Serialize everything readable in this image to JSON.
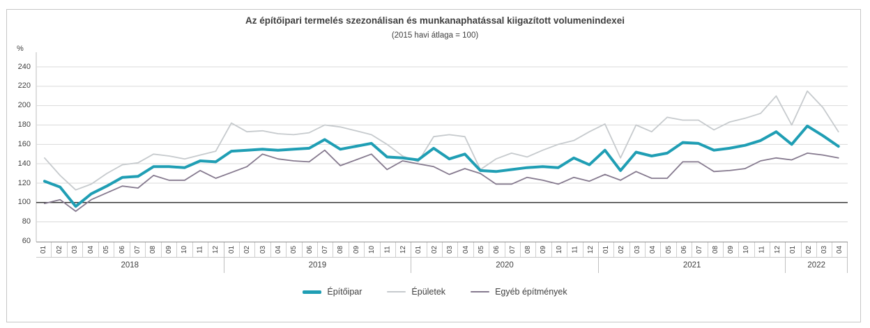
{
  "title": "Az építőipari termelés szezonálisan és munkanaphatással kiigazított volumenindexei",
  "subtitle": "(2015 havi átlaga = 100)",
  "y_axis": {
    "unit_label": "%",
    "ticks": [
      240,
      220,
      200,
      180,
      160,
      140,
      120,
      100,
      80,
      60
    ],
    "min": 60,
    "max": 240,
    "reference_line": 100
  },
  "x_axis": {
    "years": [
      {
        "label": "2018",
        "months": [
          "01",
          "02",
          "03",
          "04",
          "05",
          "06",
          "07",
          "08",
          "09",
          "10",
          "11",
          "12"
        ]
      },
      {
        "label": "2019",
        "months": [
          "01",
          "02",
          "03",
          "04",
          "05",
          "06",
          "07",
          "08",
          "09",
          "10",
          "11",
          "12"
        ]
      },
      {
        "label": "2020",
        "months": [
          "01",
          "02",
          "03",
          "04",
          "05",
          "06",
          "07",
          "08",
          "09",
          "10",
          "11",
          "12"
        ]
      },
      {
        "label": "2021",
        "months": [
          "01",
          "02",
          "03",
          "04",
          "05",
          "06",
          "07",
          "08",
          "09",
          "10",
          "11",
          "12"
        ]
      },
      {
        "label": "2022",
        "months": [
          "01",
          "02",
          "03",
          "04"
        ]
      }
    ]
  },
  "legend": [
    {
      "label": "Építőipar",
      "color": "#1f9eb4",
      "thick": true
    },
    {
      "label": "Épületek",
      "color": "#c6cacd",
      "thick": false
    },
    {
      "label": "Egyéb építmények",
      "color": "#85798e",
      "thick": false
    }
  ],
  "colors": {
    "grid": "#d9d9d9",
    "reference_line": "#262626",
    "axis": "#8c8c8c",
    "text": "#3f3f3f"
  },
  "chart_data": {
    "type": "line",
    "title": "Az építőipari termelés szezonálisan és munkanaphatással kiigazított volumenindexei",
    "subtitle": "(2015 havi átlaga = 100)",
    "ylabel": "%",
    "ylim": [
      60,
      240
    ],
    "grid": true,
    "legend_position": "bottom",
    "reference_line": 100,
    "categories": [
      "2018-01",
      "2018-02",
      "2018-03",
      "2018-04",
      "2018-05",
      "2018-06",
      "2018-07",
      "2018-08",
      "2018-09",
      "2018-10",
      "2018-11",
      "2018-12",
      "2019-01",
      "2019-02",
      "2019-03",
      "2019-04",
      "2019-05",
      "2019-06",
      "2019-07",
      "2019-08",
      "2019-09",
      "2019-10",
      "2019-11",
      "2019-12",
      "2020-01",
      "2020-02",
      "2020-03",
      "2020-04",
      "2020-05",
      "2020-06",
      "2020-07",
      "2020-08",
      "2020-09",
      "2020-10",
      "2020-11",
      "2020-12",
      "2021-01",
      "2021-02",
      "2021-03",
      "2021-04",
      "2021-05",
      "2021-06",
      "2021-07",
      "2021-08",
      "2021-09",
      "2021-10",
      "2021-11",
      "2021-12",
      "2022-01",
      "2022-02",
      "2022-03",
      "2022-04"
    ],
    "series": [
      {
        "name": "Építőipar",
        "color": "#1f9eb4",
        "stroke_width": 4,
        "values": [
          122,
          116,
          96,
          109,
          117,
          126,
          127,
          137,
          137,
          136,
          143,
          142,
          153,
          154,
          155,
          154,
          155,
          156,
          165,
          155,
          158,
          161,
          147,
          146,
          144,
          156,
          145,
          150,
          133,
          132,
          134,
          136,
          137,
          136,
          146,
          139,
          154,
          133,
          152,
          148,
          151,
          162,
          161,
          154,
          156,
          159,
          164,
          173,
          160,
          179,
          169,
          158
        ]
      },
      {
        "name": "Épületek",
        "color": "#c6cacd",
        "stroke_width": 1.8,
        "values": [
          146,
          128,
          113,
          119,
          130,
          139,
          141,
          150,
          148,
          145,
          149,
          153,
          182,
          173,
          174,
          171,
          170,
          172,
          180,
          178,
          174,
          170,
          160,
          148,
          142,
          168,
          170,
          168,
          134,
          145,
          151,
          147,
          154,
          160,
          164,
          173,
          181,
          146,
          180,
          173,
          188,
          185,
          185,
          175,
          183,
          187,
          192,
          210,
          180,
          215,
          198,
          173
        ]
      },
      {
        "name": "Egyéb építmények",
        "color": "#85798e",
        "stroke_width": 1.8,
        "values": [
          99,
          103,
          91,
          103,
          110,
          117,
          115,
          128,
          123,
          123,
          133,
          125,
          131,
          137,
          150,
          145,
          143,
          142,
          154,
          138,
          144,
          150,
          134,
          143,
          140,
          137,
          129,
          135,
          130,
          119,
          119,
          126,
          123,
          119,
          126,
          122,
          129,
          123,
          132,
          125,
          125,
          142,
          142,
          132,
          133,
          135,
          143,
          146,
          144,
          151,
          149,
          146
        ]
      }
    ]
  }
}
